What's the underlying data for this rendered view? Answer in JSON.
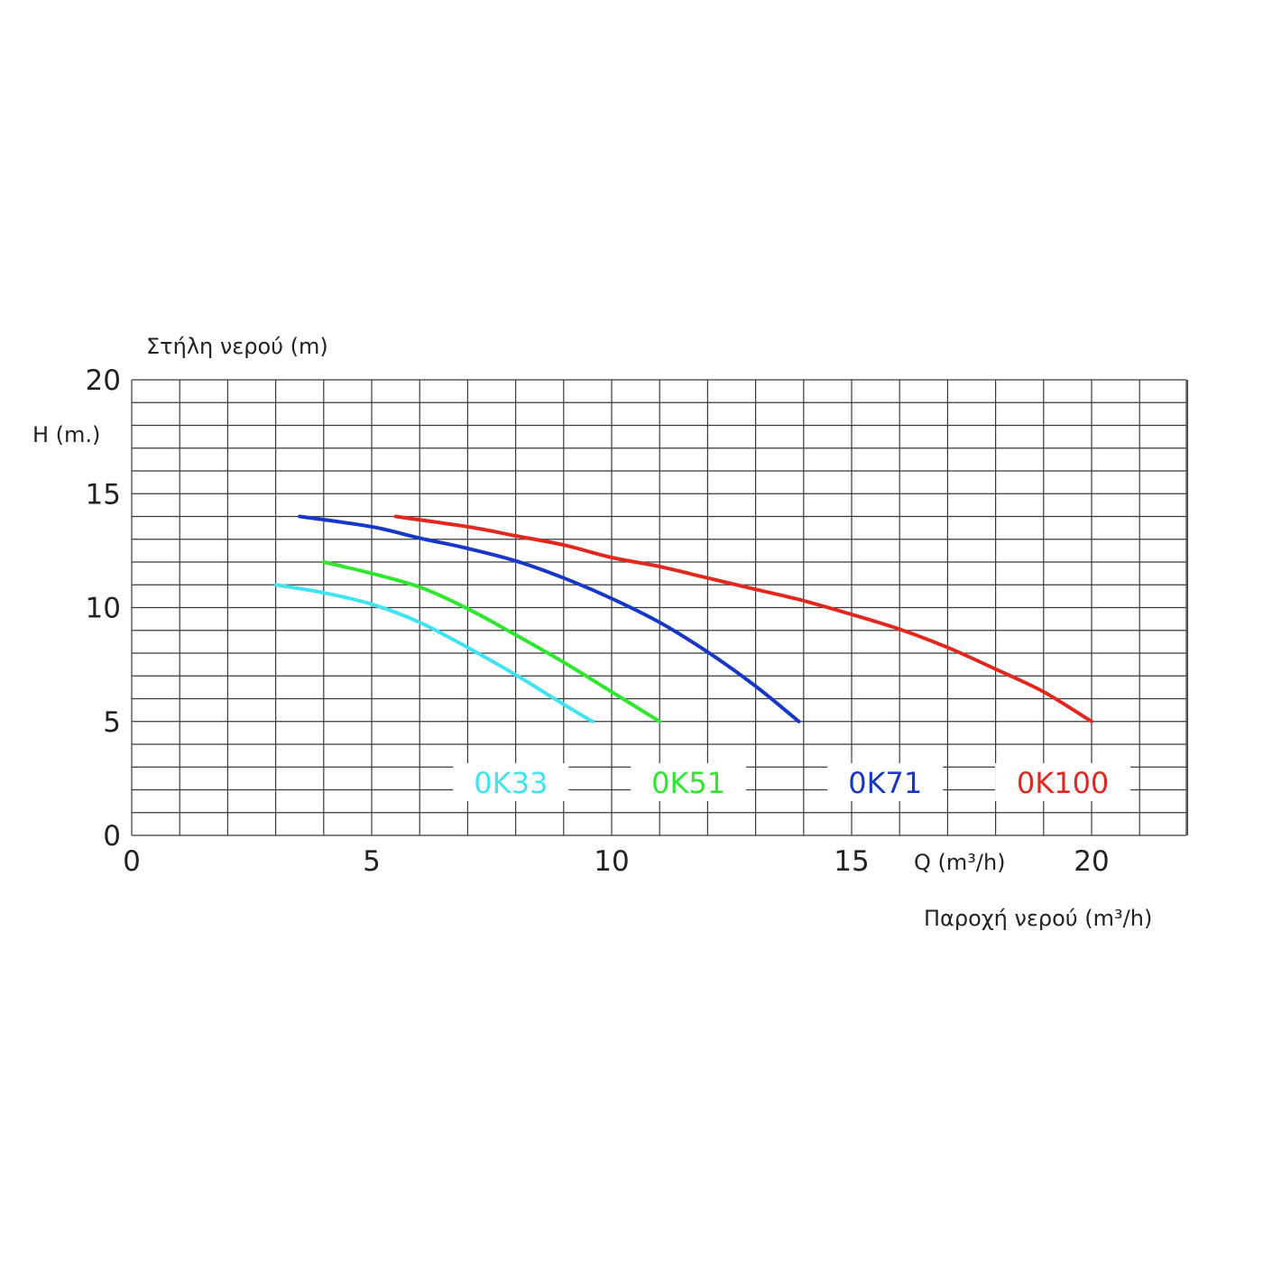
{
  "chart_data": {
    "type": "line",
    "title": "",
    "ylabel_top": "Στήλη νερού (m)",
    "ylabel": "H (m.)",
    "xlabel_inline": "Q (m³/h)",
    "xlabel": "Παροχή νερού (m³/h)",
    "xlim": [
      0,
      22
    ],
    "ylim": [
      0,
      20
    ],
    "x_ticks": [
      0,
      5,
      10,
      15,
      20
    ],
    "y_ticks": [
      0,
      5,
      10,
      15,
      20
    ],
    "grid": true,
    "grid_x_step": 1,
    "grid_y_step": 1,
    "series": [
      {
        "name": "0K33",
        "color": "#3fe3f2",
        "label_x": 7.9,
        "points": [
          [
            3.0,
            11.0
          ],
          [
            4.0,
            10.65
          ],
          [
            5.0,
            10.15
          ],
          [
            6.0,
            9.35
          ],
          [
            7.0,
            8.25
          ],
          [
            8.0,
            7.05
          ],
          [
            9.0,
            5.75
          ],
          [
            9.6,
            5.0
          ]
        ]
      },
      {
        "name": "0K51",
        "color": "#2ee82e",
        "label_x": 11.6,
        "points": [
          [
            4.0,
            12.0
          ],
          [
            5.0,
            11.5
          ],
          [
            6.0,
            10.9
          ],
          [
            7.0,
            9.95
          ],
          [
            8.0,
            8.8
          ],
          [
            9.0,
            7.6
          ],
          [
            10.0,
            6.3
          ],
          [
            11.0,
            5.0
          ]
        ]
      },
      {
        "name": "0K71",
        "color": "#1637c8",
        "label_x": 15.7,
        "points": [
          [
            3.5,
            14.0
          ],
          [
            5.0,
            13.55
          ],
          [
            6.0,
            13.05
          ],
          [
            7.0,
            12.6
          ],
          [
            8.0,
            12.05
          ],
          [
            9.0,
            11.3
          ],
          [
            10.0,
            10.4
          ],
          [
            11.0,
            9.35
          ],
          [
            12.0,
            8.05
          ],
          [
            13.0,
            6.55
          ],
          [
            13.9,
            5.0
          ]
        ]
      },
      {
        "name": "0K100",
        "color": "#e2281e",
        "label_x": 19.4,
        "points": [
          [
            5.5,
            14.0
          ],
          [
            7.0,
            13.55
          ],
          [
            8.0,
            13.15
          ],
          [
            9.0,
            12.75
          ],
          [
            10.0,
            12.2
          ],
          [
            11.0,
            11.8
          ],
          [
            12.0,
            11.3
          ],
          [
            13.0,
            10.8
          ],
          [
            14.0,
            10.3
          ],
          [
            15.0,
            9.7
          ],
          [
            16.0,
            9.05
          ],
          [
            17.0,
            8.25
          ],
          [
            18.0,
            7.3
          ],
          [
            19.0,
            6.3
          ],
          [
            20.0,
            5.0
          ]
        ]
      }
    ]
  }
}
